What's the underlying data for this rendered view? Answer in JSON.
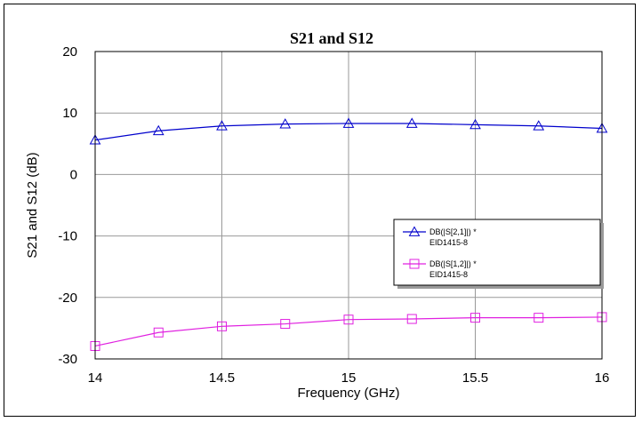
{
  "chart_data": {
    "type": "line",
    "title": "S21 and S12",
    "xlabel": "Frequency (GHz)",
    "ylabel": "S21 and S12 (dB)",
    "xlim": [
      14,
      16
    ],
    "ylim": [
      -30,
      20
    ],
    "xticks": [
      14,
      14.5,
      15,
      15.5,
      16
    ],
    "xtick_labels": [
      "14",
      "14.5",
      "15",
      "15.5",
      "16"
    ],
    "yticks": [
      -30,
      -20,
      -10,
      0,
      10,
      20
    ],
    "ytick_labels": [
      "-30",
      "-20",
      "-10",
      "0",
      "10",
      "20"
    ],
    "x_grid_lines": [
      14.5,
      15,
      15.5
    ],
    "y_grid_lines": [
      -20,
      -10,
      0,
      10
    ],
    "grid": true,
    "legend_position": "right",
    "x": [
      14,
      14.25,
      14.5,
      14.75,
      15,
      15.25,
      15.5,
      15.75,
      16
    ],
    "series": [
      {
        "name": "DB(|S[2,1]|) *",
        "name_line2": "EID1415-8",
        "color": "#0000cc",
        "marker": "triangle",
        "values": [
          5.6,
          7.1,
          7.9,
          8.2,
          8.3,
          8.3,
          8.1,
          7.9,
          7.5
        ]
      },
      {
        "name": "DB(|S[1,2]|) *",
        "name_line2": "EID1415-8",
        "color": "#e020e0",
        "marker": "square",
        "values": [
          -27.9,
          -25.7,
          -24.7,
          -24.3,
          -23.6,
          -23.5,
          -23.3,
          -23.3,
          -23.2
        ]
      }
    ]
  }
}
